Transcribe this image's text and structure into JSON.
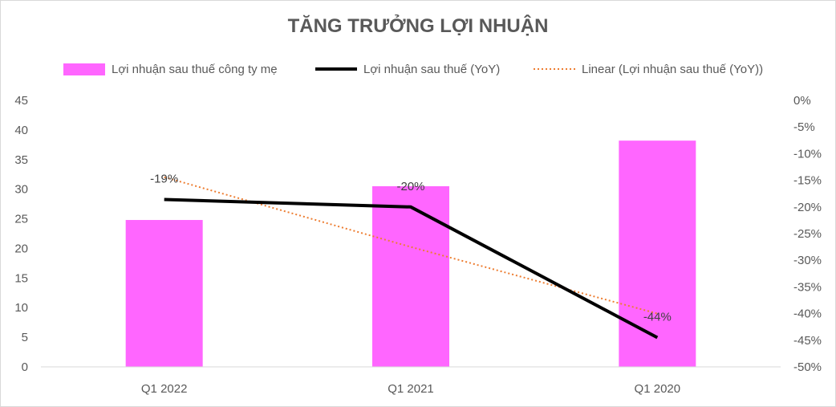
{
  "chart_data": {
    "type": "bar",
    "title": "TĂNG TRƯỞNG LỢI NHUẬN",
    "categories": [
      "Q1 2022",
      "Q1 2021",
      "Q1 2020"
    ],
    "y_left": {
      "ticks": [
        0,
        5,
        10,
        15,
        20,
        25,
        30,
        35,
        40,
        45
      ],
      "ylim": [
        0,
        45
      ]
    },
    "y_right": {
      "ticks": [
        "0%",
        "-5%",
        "-10%",
        "-15%",
        "-20%",
        "-25%",
        "-30%",
        "-35%",
        "-40%",
        "-45%",
        "-50%"
      ],
      "ylim": [
        -50,
        0
      ]
    },
    "series": [
      {
        "name": "Lợi nhuận sau thuế công ty mẹ",
        "type": "bar",
        "axis": "left",
        "color": "#ff66ff",
        "values": [
          24.8,
          30.5,
          38.2
        ]
      },
      {
        "name": "Lợi nhuận sau thuế (YoY)",
        "type": "line",
        "axis": "right",
        "color": "#000000",
        "values": [
          -18.6,
          -20.0,
          -44.5
        ],
        "data_labels": [
          "-19%",
          "-20%",
          "-44%"
        ]
      },
      {
        "name": "Linear (Lợi nhuận sau thuế (YoY))",
        "type": "trendline",
        "axis": "right",
        "color": "#ed7d31",
        "values": [
          -14.4,
          -27.5,
          -40.0
        ]
      }
    ],
    "legend": "top",
    "grid": false
  }
}
